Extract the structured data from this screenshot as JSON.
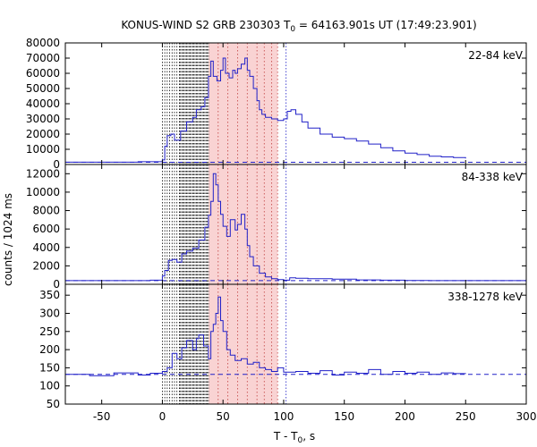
{
  "chart_data": {
    "type": "line",
    "title": "KONUS-WIND S2 GRB 230303 T",
    "title_sub": "0",
    "title_rest": " = 64163.901s UT (17:49:23.901)",
    "xlabel_main": "T - T",
    "xlabel_sub": "0",
    "xlabel_rest": ", s",
    "ylabel": "counts / 1024 ms",
    "x_range": [
      -80,
      300
    ],
    "x_ticks": [
      -50,
      0,
      50,
      100,
      150,
      200,
      250,
      300
    ],
    "x_tick_labels": [
      "-50",
      "0",
      "50",
      "100",
      "150",
      "200",
      "250",
      "300"
    ],
    "colors": {
      "curve": "#2020c8",
      "background_line": "#2020c8",
      "shade": "#f9d3d3",
      "dotted_lines": "#000000",
      "blue_dotted": "#2020c8"
    },
    "grid": false,
    "dotted_lines_x": [
      0,
      2,
      4,
      6,
      8,
      10,
      12,
      14
    ],
    "dense_lines_x": [
      14,
      15,
      16,
      17,
      18,
      19,
      20,
      21,
      22,
      23,
      24,
      25,
      26,
      27,
      28,
      29,
      30,
      31,
      32,
      33,
      34,
      35,
      36,
      37,
      38
    ],
    "shaded_range": [
      38,
      95
    ],
    "shaded_lines_x": [
      46,
      54,
      62,
      70,
      78,
      84,
      90,
      95
    ],
    "blue_line_x": 102,
    "panels": [
      {
        "label": "22-84 keV",
        "ylim": [
          0,
          80000
        ],
        "y_ticks": [
          0,
          10000,
          20000,
          30000,
          40000,
          50000,
          60000,
          70000,
          80000
        ],
        "y_tick_labels": [
          "0",
          "10000",
          "20000",
          "30000",
          "40000",
          "50000",
          "60000",
          "70000",
          "80000"
        ],
        "background": 1500,
        "series": {
          "x": [
            -80,
            -20,
            0,
            2,
            4,
            7,
            10,
            15,
            20,
            25,
            28,
            32,
            35,
            38,
            40,
            42,
            45,
            48,
            50,
            52,
            55,
            58,
            60,
            62,
            65,
            68,
            70,
            72,
            75,
            78,
            80,
            82,
            85,
            90,
            95,
            100,
            103,
            106,
            110,
            115,
            120,
            130,
            140,
            150,
            160,
            170,
            180,
            190,
            200,
            210,
            220,
            230,
            240,
            250
          ],
          "y": [
            1500,
            1800,
            3000,
            12000,
            19000,
            20000,
            16000,
            22000,
            28000,
            31000,
            36000,
            38000,
            44000,
            58000,
            68000,
            58000,
            55000,
            62000,
            70000,
            60000,
            57000,
            62000,
            60000,
            63000,
            66000,
            70000,
            62000,
            58000,
            50000,
            42000,
            36000,
            33000,
            31000,
            30000,
            29000,
            30000,
            35000,
            36000,
            33000,
            28000,
            24000,
            20000,
            18000,
            17000,
            15500,
            13500,
            11000,
            9000,
            7500,
            6500,
            5500,
            5000,
            4500,
            4000
          ]
        }
      },
      {
        "label": "84-338 keV",
        "ylim": [
          0,
          13000
        ],
        "y_ticks": [
          0,
          2000,
          4000,
          6000,
          8000,
          10000,
          12000
        ],
        "y_tick_labels": [
          "0",
          "2000",
          "4000",
          "6000",
          "8000",
          "10000",
          "12000"
        ],
        "background": 400,
        "series": {
          "x": [
            -80,
            -10,
            0,
            2,
            5,
            8,
            12,
            16,
            20,
            25,
            30,
            35,
            38,
            40,
            42,
            44,
            46,
            48,
            50,
            53,
            56,
            60,
            62,
            65,
            68,
            70,
            72,
            75,
            80,
            85,
            90,
            95,
            100,
            105,
            110,
            120,
            140,
            160,
            180,
            200,
            220,
            250,
            300
          ],
          "y": [
            400,
            450,
            900,
            1500,
            2600,
            2700,
            2400,
            3300,
            3600,
            3900,
            4800,
            6200,
            7500,
            9000,
            12000,
            10800,
            9000,
            7600,
            6300,
            5200,
            7000,
            5900,
            6500,
            7600,
            6000,
            4200,
            3000,
            2000,
            1200,
            800,
            600,
            500,
            450,
            700,
            650,
            600,
            550,
            480,
            450,
            420,
            400,
            400,
            400
          ]
        }
      },
      {
        "label": "338-1278 keV",
        "ylim": [
          50,
          380
        ],
        "y_ticks": [
          50,
          100,
          150,
          200,
          250,
          300,
          350
        ],
        "y_tick_labels": [
          "50",
          "100",
          "150",
          "200",
          "250",
          "300",
          "350"
        ],
        "background": 132,
        "series": {
          "x": [
            -80,
            -60,
            -40,
            -20,
            -10,
            0,
            4,
            8,
            12,
            16,
            20,
            25,
            28,
            30,
            34,
            38,
            40,
            42,
            44,
            46,
            48,
            50,
            53,
            56,
            60,
            65,
            70,
            75,
            80,
            85,
            90,
            95,
            100,
            110,
            120,
            130,
            140,
            150,
            160,
            170,
            180,
            190,
            200,
            210,
            220,
            230,
            240,
            250
          ],
          "y": [
            132,
            128,
            136,
            130,
            135,
            140,
            150,
            190,
            175,
            205,
            225,
            200,
            230,
            240,
            210,
            175,
            250,
            270,
            300,
            345,
            280,
            250,
            200,
            185,
            170,
            175,
            160,
            165,
            150,
            145,
            140,
            150,
            138,
            140,
            135,
            142,
            130,
            138,
            135,
            145,
            132,
            140,
            135,
            138,
            132,
            136,
            134,
            133
          ]
        }
      }
    ]
  }
}
